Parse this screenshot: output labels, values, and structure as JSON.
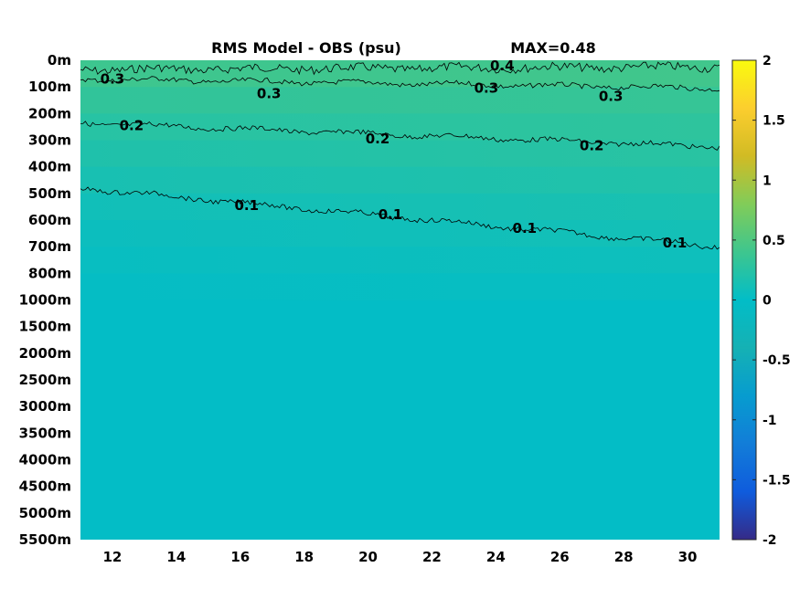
{
  "chart_data": {
    "type": "heatmap",
    "title": "RMS Model - OBS (psu)",
    "max_label": "MAX=0.48",
    "xlim": [
      11,
      31
    ],
    "x_ticks": [
      "12",
      "14",
      "16",
      "18",
      "20",
      "22",
      "24",
      "26",
      "28",
      "30"
    ],
    "x_tick_values": [
      12,
      14,
      16,
      18,
      20,
      22,
      24,
      26,
      28,
      30
    ],
    "y_ticks": [
      "0m",
      "100m",
      "200m",
      "300m",
      "400m",
      "500m",
      "600m",
      "700m",
      "800m",
      "1000m",
      "1500m",
      "2000m",
      "2500m",
      "3000m",
      "3500m",
      "4000m",
      "4500m",
      "5000m",
      "5500m"
    ],
    "y_axis_reversed": true,
    "colormap": "parula",
    "clim": [
      -2,
      2
    ],
    "colorbar_ticks": [
      "2",
      "1.5",
      "1",
      "0.5",
      "0",
      "-0.5",
      "-1",
      "-1.5",
      "-2"
    ],
    "colorbar_tick_values": [
      2,
      1.5,
      1,
      0.5,
      0,
      -0.5,
      -1,
      -1.5,
      -2
    ],
    "field_depth_index": [
      0,
      1,
      2,
      3,
      4,
      5,
      6,
      7,
      8,
      9,
      18
    ],
    "field_rms_start": [
      0.42,
      0.36,
      0.27,
      0.22,
      0.17,
      0.12,
      0.08,
      0.05,
      0.03,
      0.01,
      0.0
    ],
    "field_rms_end": [
      0.45,
      0.38,
      0.31,
      0.28,
      0.24,
      0.18,
      0.14,
      0.1,
      0.06,
      0.02,
      0.0
    ],
    "contours": [
      {
        "level": 0.4,
        "depth_index_start": 0.35,
        "depth_index_end": 0.25,
        "labels": [
          {
            "text": "0.4",
            "x": 24.2,
            "depth_index": 0.2
          }
        ]
      },
      {
        "level": 0.3,
        "depth_index_start": 0.7,
        "depth_index_end": 1.05,
        "labels": [
          {
            "text": "0.3",
            "x": 12.0,
            "depth_index": 0.7
          },
          {
            "text": "0.3",
            "x": 16.9,
            "depth_index": 1.25
          },
          {
            "text": "0.3",
            "x": 23.7,
            "depth_index": 1.05
          },
          {
            "text": "0.3",
            "x": 27.6,
            "depth_index": 1.35
          }
        ]
      },
      {
        "level": 0.2,
        "depth_index_start": 2.35,
        "depth_index_end": 3.25,
        "labels": [
          {
            "text": "0.2",
            "x": 12.6,
            "depth_index": 2.45
          },
          {
            "text": "0.2",
            "x": 20.3,
            "depth_index": 2.95
          },
          {
            "text": "0.2",
            "x": 27.0,
            "depth_index": 3.2
          }
        ]
      },
      {
        "level": 0.1,
        "depth_index_start": 4.8,
        "depth_index_end": 7.0,
        "labels": [
          {
            "text": "0.1",
            "x": 16.2,
            "depth_index": 5.45
          },
          {
            "text": "0.1",
            "x": 20.7,
            "depth_index": 5.8
          },
          {
            "text": "0.1",
            "x": 24.9,
            "depth_index": 6.3
          },
          {
            "text": "0.1",
            "x": 29.6,
            "depth_index": 6.85
          }
        ]
      }
    ]
  }
}
